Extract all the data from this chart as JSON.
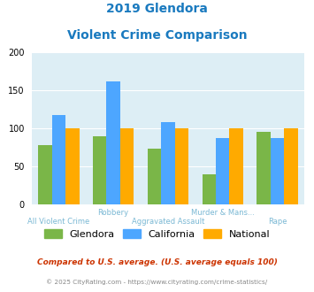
{
  "title_line1": "2019 Glendora",
  "title_line2": "Violent Crime Comparison",
  "glendora": [
    78,
    90,
    73,
    40,
    95
  ],
  "california": [
    118,
    162,
    108,
    87,
    87
  ],
  "national": [
    100,
    100,
    100,
    100,
    100
  ],
  "x_positions": [
    0,
    1,
    2,
    3,
    4
  ],
  "x_top_labels": [
    "",
    "Robbery",
    "",
    "Murder & Mans...",
    ""
  ],
  "x_bot_labels": [
    "All Violent Crime",
    "",
    "Aggravated Assault",
    "",
    "Rape"
  ],
  "color_glendora": "#7ab648",
  "color_california": "#4da6ff",
  "color_national": "#ffaa00",
  "ylim": [
    0,
    200
  ],
  "yticks": [
    0,
    50,
    100,
    150,
    200
  ],
  "bar_width": 0.25,
  "bg_color": "#ddeef5",
  "title_color": "#1a7abf",
  "legend_labels": [
    "Glendora",
    "California",
    "National"
  ],
  "footnote1": "Compared to U.S. average. (U.S. average equals 100)",
  "footnote2": "© 2025 CityRating.com - https://www.cityrating.com/crime-statistics/",
  "footnote1_color": "#cc3300",
  "footnote2_color": "#888888",
  "xtick_color": "#7ab8d4"
}
